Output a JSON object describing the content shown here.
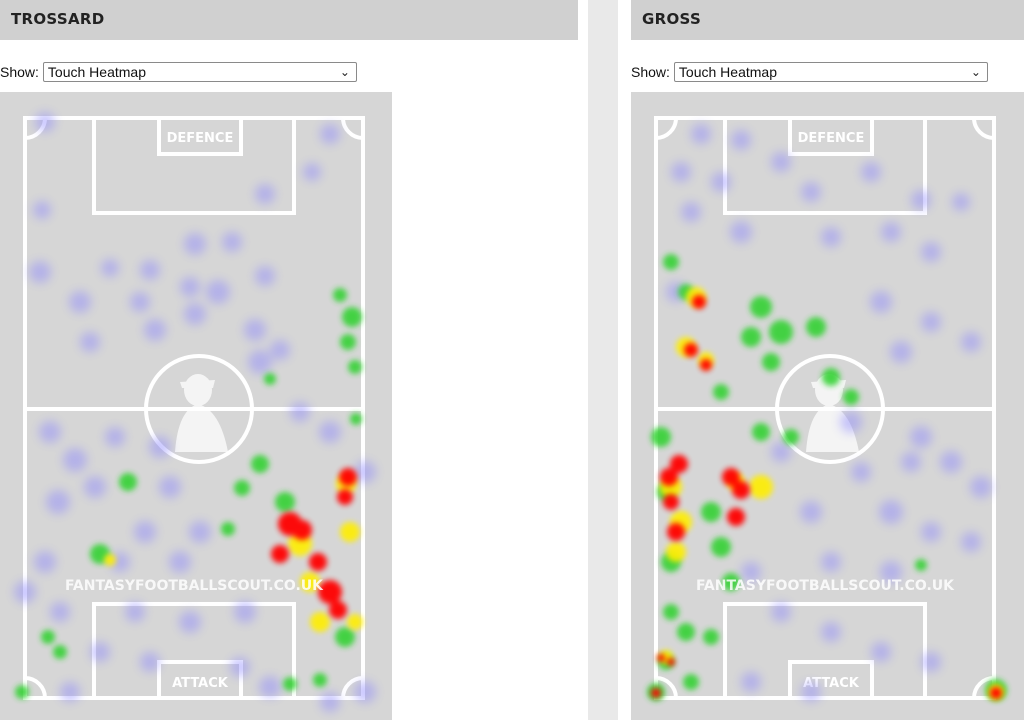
{
  "panels": [
    {
      "player": "TROSSARD",
      "show_label": "Show:",
      "selected_view": "Touch Heatmap",
      "zones": {
        "top": "DEFENCE",
        "bottom": "ATTACK"
      },
      "watermark": "FANTASYFOOTBALLSCOUT.CO.UK"
    },
    {
      "player": "GROSS",
      "show_label": "Show:",
      "selected_view": "Touch Heatmap",
      "zones": {
        "top": "DEFENCE",
        "bottom": "ATTACK"
      },
      "watermark": "FANTASYFOOTBALLSCOUT.CO.UK"
    }
  ],
  "colors": {
    "pitch": "#d6d6d6",
    "lines": "#ffffff",
    "heat_low": "#8a85ff",
    "heat_mid": "#2bd12b",
    "heat_high": "#ffee00",
    "heat_max": "#ff0000",
    "header_bg": "#d0d0d0"
  },
  "icons": {
    "dropdown": "chevron-down-icon"
  }
}
